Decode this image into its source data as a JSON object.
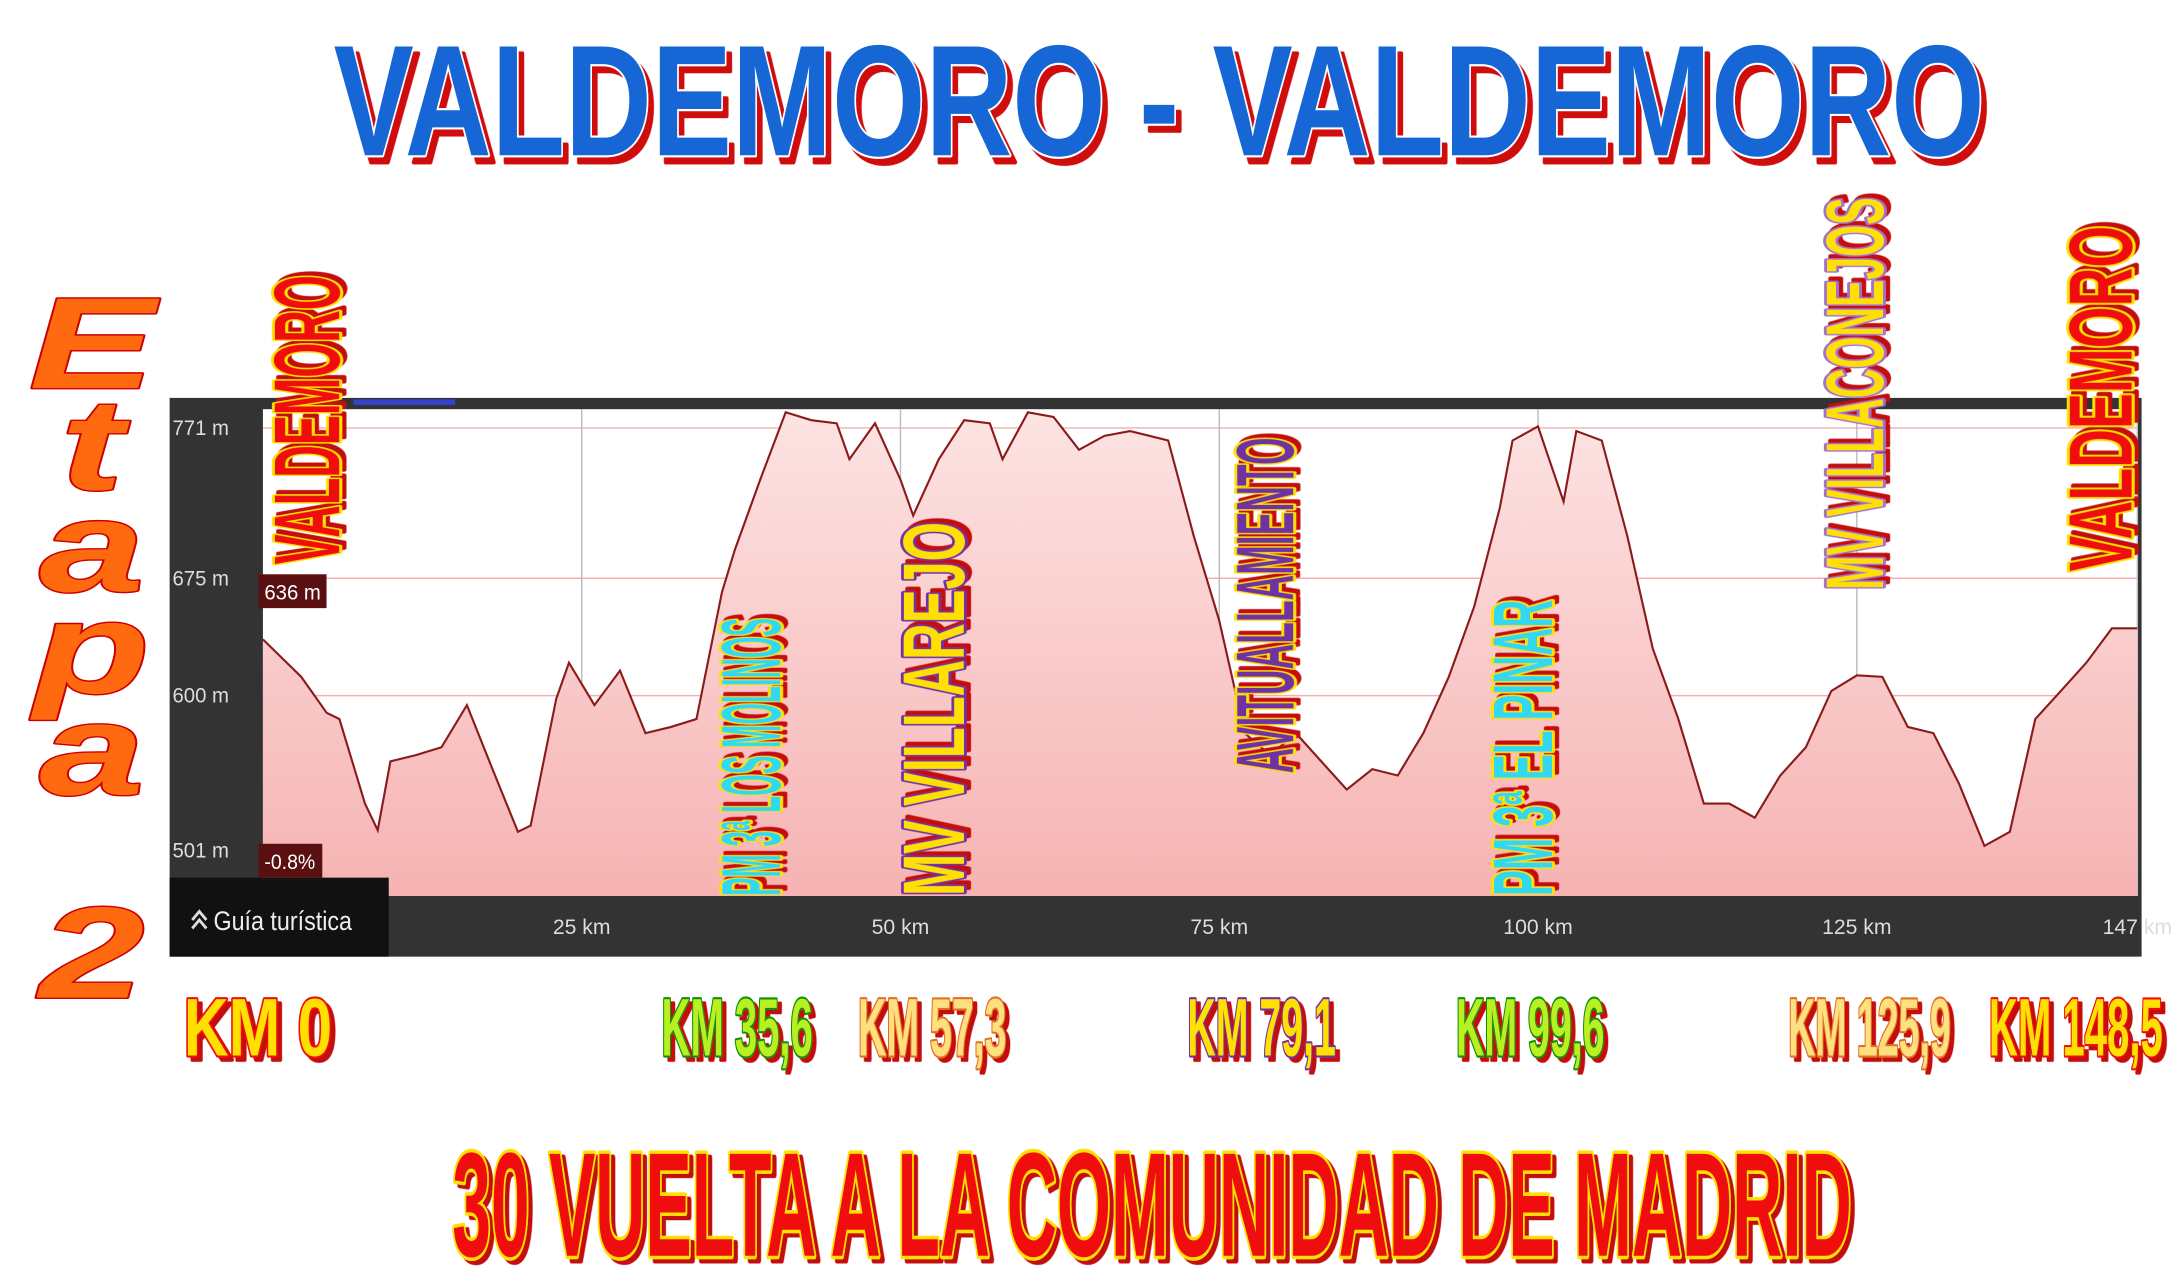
{
  "title": "VALDEMORO - VALDEMORO",
  "subtitle": "Etapa 2",
  "footer": "30 VUELTA A LA COMUNIDAD DE MADRID",
  "chart_data": {
    "type": "area",
    "x": [
      0,
      3,
      5,
      6,
      8,
      9,
      10,
      12,
      14,
      16,
      18,
      20,
      21,
      23,
      24,
      26,
      28,
      30,
      32,
      34,
      36,
      37,
      39,
      41,
      43,
      45,
      46,
      48,
      50,
      51,
      53,
      55,
      57,
      58,
      60,
      62,
      64,
      66,
      68,
      71,
      73,
      75,
      77,
      79,
      81,
      83,
      85,
      87,
      89,
      91,
      93,
      95,
      97,
      98,
      100,
      102,
      103,
      105,
      107,
      109,
      111,
      113,
      115,
      117,
      119,
      121,
      123,
      125,
      127,
      129,
      131,
      133,
      135,
      137,
      139,
      141,
      143,
      145,
      147
    ],
    "values": [
      636,
      612,
      589,
      585,
      531,
      514,
      558,
      562,
      567,
      594,
      553,
      513,
      517,
      598,
      621,
      594,
      616,
      576,
      580,
      585,
      666,
      693,
      738,
      781,
      776,
      774,
      751,
      774,
      738,
      715,
      751,
      776,
      774,
      751,
      781,
      778,
      757,
      766,
      769,
      763,
      702,
      648,
      576,
      562,
      576,
      558,
      540,
      553,
      549,
      576,
      612,
      657,
      720,
      763,
      772,
      724,
      769,
      763,
      702,
      630,
      585,
      531,
      531,
      522,
      549,
      567,
      603,
      613,
      612,
      580,
      576,
      544,
      504,
      513,
      585,
      603,
      621,
      643,
      643
    ],
    "color": "#8b1a1a",
    "xlim": [
      0,
      147
    ],
    "ylim": [
      472,
      783
    ],
    "xticks": [
      {
        "value": 25,
        "label": "25 km"
      },
      {
        "value": 50,
        "label": "50 km"
      },
      {
        "value": 75,
        "label": "75 km"
      },
      {
        "value": 100,
        "label": "100 km"
      },
      {
        "value": 125,
        "label": "125 km"
      },
      {
        "value": 147,
        "label": "147 km"
      }
    ],
    "yticks": [
      {
        "value": 771,
        "label": "771 m"
      },
      {
        "value": 675,
        "label": "675 m"
      },
      {
        "value": 600,
        "label": "600 m"
      },
      {
        "value": 501,
        "label": "501 m"
      }
    ],
    "grid": true,
    "start_elevation_label": "636 m",
    "grade_label": "-0.8%",
    "guide_label": "Guía turística",
    "annotations": [
      {
        "label": "VALDEMORO",
        "km_label": "KM 0"
      },
      {
        "label": "PM 3ª LOS MOLINOS",
        "km_label": "KM 35,6"
      },
      {
        "label": "MV VILLAREJO",
        "km_label": "KM 57,3"
      },
      {
        "label": "AVITUALLAMIENTO",
        "km_label": "KM 79,1"
      },
      {
        "label": "PM 3ª EL PINAR",
        "km_label": "KM 99,6"
      },
      {
        "label": "MV VILLACONEJOS",
        "km_label": "KM 125,9"
      },
      {
        "label": "VALDEMORO",
        "km_label": "KM 148,5"
      }
    ]
  }
}
